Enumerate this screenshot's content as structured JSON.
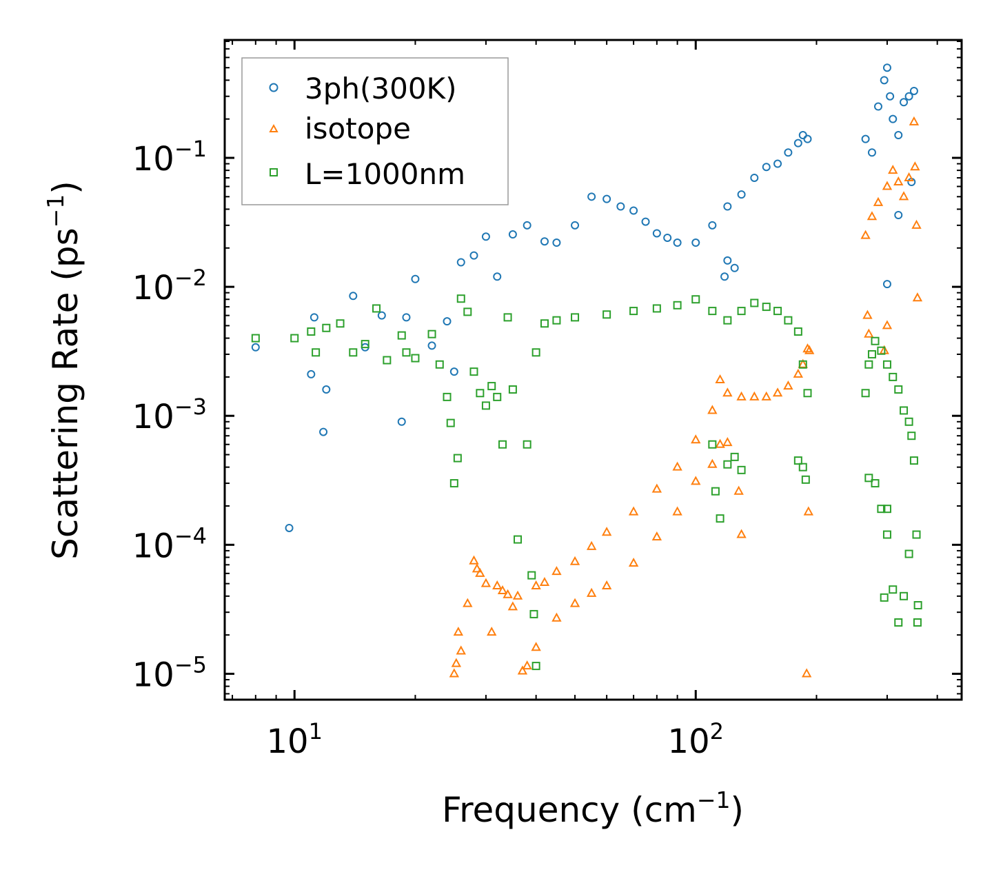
{
  "chart_data": {
    "type": "scatter",
    "xlabel": "Frequency (cm",
    "xlabel_sup": "−1",
    "xlabel_end": ")",
    "ylabel": "Scattering Rate (ps",
    "ylabel_sup": "−1",
    "ylabel_end": ")",
    "xscale": "log",
    "yscale": "log",
    "xlim": [
      6.7,
      460
    ],
    "ylim": [
      6.3e-06,
      0.82
    ],
    "x_ticks": [
      {
        "value": 10,
        "base": "10",
        "exp": "1"
      },
      {
        "value": 100,
        "base": "10",
        "exp": "2"
      }
    ],
    "y_ticks": [
      {
        "value": 0.1,
        "base": "10",
        "exp": "−1"
      },
      {
        "value": 0.01,
        "base": "10",
        "exp": "−2"
      },
      {
        "value": 0.001,
        "base": "10",
        "exp": "−3"
      },
      {
        "value": 0.0001,
        "base": "10",
        "exp": "−4"
      },
      {
        "value": 1e-05,
        "base": "10",
        "exp": "−5"
      }
    ],
    "legend_position": "top-left",
    "series": [
      {
        "name": "3ph(300K)",
        "marker": "circle",
        "color": "#1f77b4",
        "points": [
          [
            8,
            0.0034
          ],
          [
            9.7,
            0.000135
          ],
          [
            11,
            0.0021
          ],
          [
            11.2,
            0.0058
          ],
          [
            11.8,
            0.00075
          ],
          [
            12,
            0.0016
          ],
          [
            14,
            0.0085
          ],
          [
            15,
            0.0034
          ],
          [
            16.5,
            0.006
          ],
          [
            18.5,
            0.0009
          ],
          [
            19,
            0.0058
          ],
          [
            20,
            0.0115
          ],
          [
            22,
            0.0035
          ],
          [
            24,
            0.0054
          ],
          [
            25,
            0.0022
          ],
          [
            26,
            0.0155
          ],
          [
            28,
            0.0175
          ],
          [
            30,
            0.0245
          ],
          [
            32,
            0.012
          ],
          [
            35,
            0.0255
          ],
          [
            38,
            0.03
          ],
          [
            42,
            0.0225
          ],
          [
            45,
            0.022
          ],
          [
            50,
            0.03
          ],
          [
            55,
            0.05
          ],
          [
            60,
            0.048
          ],
          [
            65,
            0.042
          ],
          [
            70,
            0.039
          ],
          [
            75,
            0.032
          ],
          [
            80,
            0.026
          ],
          [
            85,
            0.024
          ],
          [
            90,
            0.022
          ],
          [
            100,
            0.022
          ],
          [
            110,
            0.03
          ],
          [
            120,
            0.042
          ],
          [
            130,
            0.052
          ],
          [
            140,
            0.07
          ],
          [
            150,
            0.085
          ],
          [
            160,
            0.09
          ],
          [
            170,
            0.11
          ],
          [
            180,
            0.13
          ],
          [
            185,
            0.15
          ],
          [
            190,
            0.14
          ],
          [
            120,
            0.016
          ],
          [
            125,
            0.014
          ],
          [
            118,
            0.012
          ],
          [
            265,
            0.14
          ],
          [
            275,
            0.11
          ],
          [
            285,
            0.25
          ],
          [
            295,
            0.4
          ],
          [
            300,
            0.5
          ],
          [
            305,
            0.3
          ],
          [
            310,
            0.2
          ],
          [
            320,
            0.15
          ],
          [
            330,
            0.27
          ],
          [
            340,
            0.3
          ],
          [
            350,
            0.33
          ],
          [
            300,
            0.0105
          ],
          [
            320,
            0.036
          ],
          [
            345,
            0.065
          ]
        ]
      },
      {
        "name": "isotope",
        "marker": "triangle",
        "color": "#ff7f0e",
        "points": [
          [
            25,
            1e-05
          ],
          [
            25.3,
            1.2e-05
          ],
          [
            25.6,
            2.1e-05
          ],
          [
            26,
            1.5e-05
          ],
          [
            27,
            3.5e-05
          ],
          [
            28,
            7.5e-05
          ],
          [
            28.5,
            6.5e-05
          ],
          [
            29,
            6e-05
          ],
          [
            30,
            5e-05
          ],
          [
            31,
            2.1e-05
          ],
          [
            32,
            4.8e-05
          ],
          [
            33,
            4.4e-05
          ],
          [
            34,
            4.1e-05
          ],
          [
            35,
            3.3e-05
          ],
          [
            36,
            4e-05
          ],
          [
            37,
            1.05e-05
          ],
          [
            38,
            1.15e-05
          ],
          [
            40,
            4.8e-05
          ],
          [
            42,
            5.1e-05
          ],
          [
            45,
            6.2e-05
          ],
          [
            50,
            7.4e-05
          ],
          [
            55,
            9.7e-05
          ],
          [
            60,
            0.000125
          ],
          [
            70,
            0.00018
          ],
          [
            80,
            0.00027
          ],
          [
            90,
            0.0004
          ],
          [
            100,
            0.00065
          ],
          [
            110,
            0.0011
          ],
          [
            115,
            0.0019
          ],
          [
            120,
            0.0015
          ],
          [
            130,
            0.0014
          ],
          [
            140,
            0.0014
          ],
          [
            150,
            0.0014
          ],
          [
            160,
            0.0015
          ],
          [
            170,
            0.0017
          ],
          [
            180,
            0.0021
          ],
          [
            185,
            0.0025
          ],
          [
            190,
            0.0033
          ],
          [
            192,
            0.0032
          ],
          [
            191,
            0.00018
          ],
          [
            189,
            1e-05
          ],
          [
            40,
            1.6e-05
          ],
          [
            45,
            2.7e-05
          ],
          [
            50,
            3.5e-05
          ],
          [
            55,
            4.2e-05
          ],
          [
            60,
            4.8e-05
          ],
          [
            70,
            7.2e-05
          ],
          [
            80,
            0.000115
          ],
          [
            90,
            0.00018
          ],
          [
            100,
            0.00031
          ],
          [
            110,
            0.00042
          ],
          [
            115,
            0.0006
          ],
          [
            120,
            0.00062
          ],
          [
            128,
            0.00026
          ],
          [
            130,
            0.00012
          ],
          [
            265,
            0.025
          ],
          [
            268,
            0.006
          ],
          [
            270,
            0.0043
          ],
          [
            275,
            0.035
          ],
          [
            285,
            0.045
          ],
          [
            300,
            0.06
          ],
          [
            310,
            0.08
          ],
          [
            320,
            0.065
          ],
          [
            330,
            0.05
          ],
          [
            340,
            0.07
          ],
          [
            350,
            0.19
          ],
          [
            352,
            0.085
          ],
          [
            355,
            0.03
          ],
          [
            357,
            0.0082
          ],
          [
            295,
            0.0032
          ],
          [
            300,
            0.005
          ]
        ]
      },
      {
        "name": "L=1000nm",
        "marker": "square",
        "color": "#2ca02c",
        "points": [
          [
            8,
            0.004
          ],
          [
            10,
            0.004
          ],
          [
            11,
            0.0045
          ],
          [
            11.3,
            0.0031
          ],
          [
            12,
            0.0048
          ],
          [
            13,
            0.0052
          ],
          [
            14,
            0.0031
          ],
          [
            15,
            0.0036
          ],
          [
            16,
            0.0068
          ],
          [
            17,
            0.0027
          ],
          [
            18.5,
            0.0042
          ],
          [
            19,
            0.0031
          ],
          [
            20,
            0.0028
          ],
          [
            22,
            0.0043
          ],
          [
            23,
            0.0025
          ],
          [
            24,
            0.0014
          ],
          [
            24.5,
            0.00088
          ],
          [
            25,
            0.0003
          ],
          [
            25.5,
            0.00047
          ],
          [
            26,
            0.0081
          ],
          [
            27,
            0.0064
          ],
          [
            28,
            0.0022
          ],
          [
            29,
            0.0015
          ],
          [
            30,
            0.0012
          ],
          [
            31,
            0.0017
          ],
          [
            32,
            0.0014
          ],
          [
            33,
            0.0006
          ],
          [
            34,
            0.0058
          ],
          [
            35,
            0.0016
          ],
          [
            36,
            0.00011
          ],
          [
            38,
            0.0006
          ],
          [
            40,
            0.0031
          ],
          [
            42,
            0.0052
          ],
          [
            45,
            0.0055
          ],
          [
            50,
            0.0058
          ],
          [
            60,
            0.0061
          ],
          [
            70,
            0.0065
          ],
          [
            80,
            0.0068
          ],
          [
            90,
            0.0072
          ],
          [
            100,
            0.008
          ],
          [
            110,
            0.0065
          ],
          [
            120,
            0.0055
          ],
          [
            130,
            0.0065
          ],
          [
            140,
            0.0075
          ],
          [
            150,
            0.007
          ],
          [
            160,
            0.0065
          ],
          [
            170,
            0.0055
          ],
          [
            180,
            0.0045
          ],
          [
            185,
            0.0025
          ],
          [
            190,
            0.0015
          ],
          [
            110,
            0.0006
          ],
          [
            112,
            0.00026
          ],
          [
            115,
            0.00016
          ],
          [
            120,
            0.00042
          ],
          [
            125,
            0.00048
          ],
          [
            130,
            0.00038
          ],
          [
            180,
            0.00045
          ],
          [
            185,
            0.0004
          ],
          [
            188,
            0.00032
          ],
          [
            40,
            1.15e-05
          ],
          [
            39,
            5.8e-05
          ],
          [
            39.5,
            2.9e-05
          ],
          [
            265,
            0.0015
          ],
          [
            270,
            0.0025
          ],
          [
            275,
            0.003
          ],
          [
            280,
            0.0038
          ],
          [
            290,
            0.0032
          ],
          [
            300,
            0.0025
          ],
          [
            310,
            0.002
          ],
          [
            320,
            0.0016
          ],
          [
            330,
            0.0011
          ],
          [
            340,
            0.0009
          ],
          [
            345,
            0.0007
          ],
          [
            350,
            0.00045
          ],
          [
            355,
            0.00012
          ],
          [
            357,
            2.5e-05
          ],
          [
            358,
            3.4e-05
          ],
          [
            270,
            0.00033
          ],
          [
            280,
            0.0003
          ],
          [
            290,
            0.00019
          ],
          [
            300,
            0.00019
          ],
          [
            310,
            4.5e-05
          ],
          [
            320,
            2.5e-05
          ],
          [
            330,
            4e-05
          ],
          [
            340,
            8.5e-05
          ],
          [
            300,
            0.00012
          ],
          [
            295,
            3.9e-05
          ]
        ]
      }
    ]
  }
}
